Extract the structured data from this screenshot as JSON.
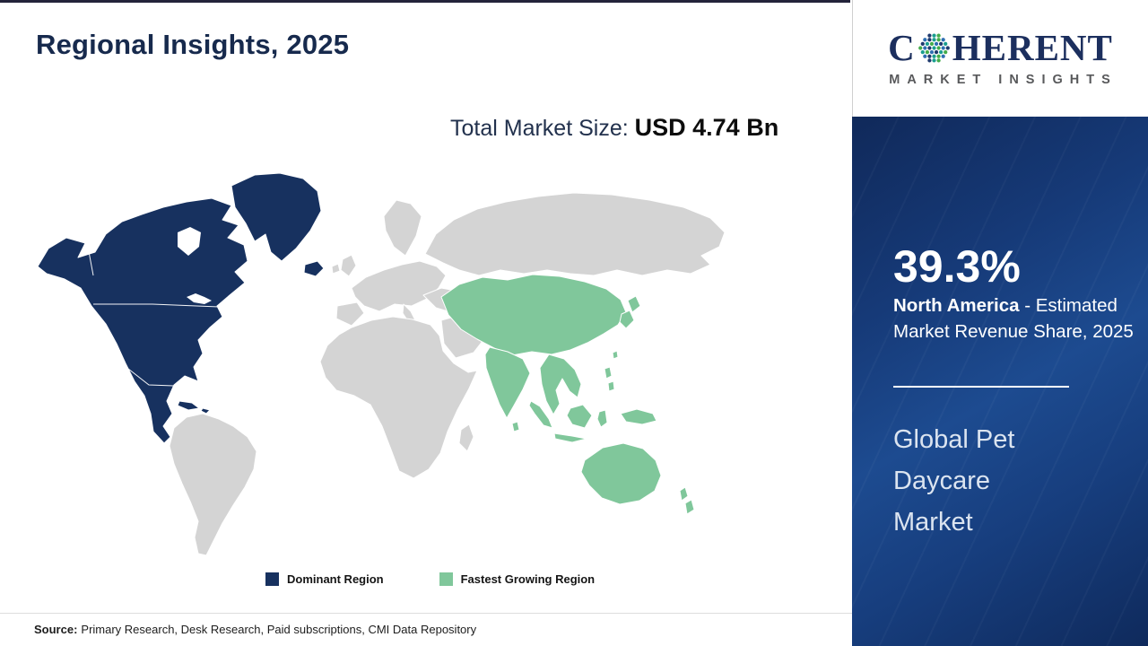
{
  "page": {
    "title": "Regional Insights, 2025",
    "market_size": {
      "label": "Total Market Size: ",
      "value": "USD 4.74 Bn"
    }
  },
  "map": {
    "colors": {
      "dominant": "#17315f",
      "fastest_growing": "#80c79b",
      "other": "#d4d4d4"
    },
    "regions": [
      {
        "name": "North America",
        "status": "Dominant Region"
      },
      {
        "name": "Asia Pacific",
        "status": "Fastest Growing Region"
      },
      {
        "name": "Rest of World",
        "status": "Other"
      }
    ]
  },
  "legend": {
    "items": [
      {
        "label": "Dominant Region",
        "color": "#17315f"
      },
      {
        "label": "Fastest Growing Region",
        "color": "#80c79b"
      }
    ]
  },
  "footer": {
    "source_label": "Source:",
    "source_text": "Primary Research, Desk Research, Paid subscriptions, CMI Data Repository"
  },
  "sidebar": {
    "logo": {
      "brand_prefix": "C",
      "brand_suffix": "HERENT",
      "tagline": "MARKET INSIGHTS"
    },
    "stat": {
      "value": "39.3%",
      "region": "North America",
      "description": " - Estimated Market Revenue Share, 2025"
    },
    "report_title": "Global Pet Daycare Market"
  }
}
